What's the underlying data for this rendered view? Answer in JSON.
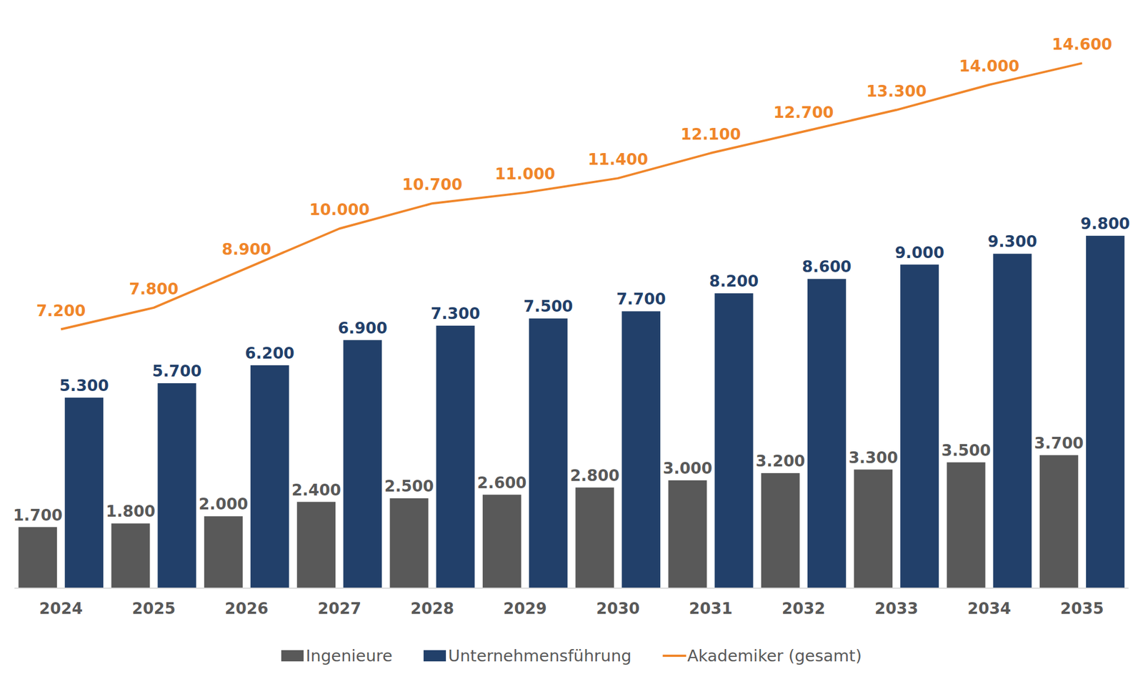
{
  "chart_data": {
    "type": "bar",
    "categories": [
      "2024",
      "2025",
      "2026",
      "2027",
      "2028",
      "2029",
      "2030",
      "2031",
      "2032",
      "2033",
      "2034",
      "2035"
    ],
    "series": [
      {
        "name": "Ingenieure",
        "type": "bar",
        "color": "#595959",
        "values": [
          1700,
          1800,
          2000,
          2400,
          2500,
          2600,
          2800,
          3000,
          3200,
          3300,
          3500,
          3700
        ],
        "value_labels": [
          "1.700",
          "1.800",
          "2.000",
          "2.400",
          "2.500",
          "2.600",
          "2.800",
          "3.000",
          "3.200",
          "3.300",
          "3.500",
          "3.700"
        ]
      },
      {
        "name": "Unternehmensführung",
        "type": "bar",
        "color": "#22406a",
        "values": [
          5300,
          5700,
          6200,
          6900,
          7300,
          7500,
          7700,
          8200,
          8600,
          9000,
          9300,
          9800
        ],
        "value_labels": [
          "5.300",
          "5.700",
          "6.200",
          "6.900",
          "7.300",
          "7.500",
          "7.700",
          "8.200",
          "8.600",
          "9.000",
          "9.300",
          "9.800"
        ]
      },
      {
        "name": "Akademiker (gesamt)",
        "type": "line",
        "color": "#f0862a",
        "values": [
          7200,
          7800,
          8900,
          10000,
          10700,
          11000,
          11400,
          12100,
          12700,
          13300,
          14000,
          14600
        ],
        "value_labels": [
          "7.200",
          "7.800",
          "8.900",
          "10.000",
          "10.700",
          "11.000",
          "11.400",
          "12.100",
          "12.700",
          "13.300",
          "14.000",
          "14.600"
        ]
      }
    ],
    "ylim": [
      0,
      16000
    ],
    "tick_labels": "x",
    "grid": false,
    "data_labels": true,
    "legend": "bottom"
  }
}
